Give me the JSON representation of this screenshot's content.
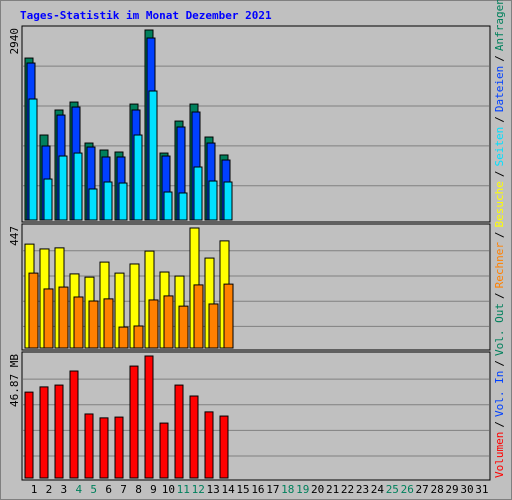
{
  "title": "Tages-Statistik im Monat Dezember 2021",
  "legend_separator": "/",
  "chart_data": [
    {
      "type": "bar",
      "ylim": [
        0,
        2940
      ],
      "yticks": [
        2940
      ],
      "series": [
        {
          "name": "Anfragen",
          "color": "#00805c",
          "values": [
            2506,
            1315,
            1702,
            1825,
            1191,
            1083,
            1052,
            1794,
            2940,
            1036,
            1531,
            1794,
            1284,
            1006,
            null,
            null,
            null,
            null,
            null,
            null,
            null,
            null,
            null,
            null,
            null,
            null,
            null,
            null,
            null,
            null,
            null
          ]
        },
        {
          "name": "Dateien",
          "color": "#0040ff",
          "values": [
            2429,
            1145,
            1624,
            1748,
            1129,
            975,
            975,
            1702,
            2816,
            990,
            1439,
            1671,
            1191,
            928,
            null,
            null,
            null,
            null,
            null,
            null,
            null,
            null,
            null,
            null,
            null,
            null,
            null,
            null,
            null,
            null,
            null
          ]
        },
        {
          "name": "Seiten",
          "color": "#00e0ff",
          "values": [
            1872,
            634,
            990,
            1036,
            480,
            588,
            572,
            1315,
            1996,
            433,
            418,
            820,
            603,
            588,
            null,
            null,
            null,
            null,
            null,
            null,
            null,
            null,
            null,
            null,
            null,
            null,
            null,
            null,
            null,
            null,
            null
          ]
        }
      ]
    },
    {
      "type": "bar",
      "ylim": [
        0,
        447
      ],
      "yticks": [
        447
      ],
      "series": [
        {
          "name": "Besuche",
          "color": "#ffff00",
          "values": [
            387,
            369,
            373,
            276,
            264,
            320,
            279,
            313,
            361,
            283,
            268,
            447,
            335,
            399,
            null,
            null,
            null,
            null,
            null,
            null,
            null,
            null,
            null,
            null,
            null,
            null,
            null,
            null,
            null,
            null,
            null
          ]
        },
        {
          "name": "Rechner",
          "color": "#ff8000",
          "values": [
            279,
            220,
            227,
            190,
            175,
            183,
            78,
            82,
            179,
            194,
            156,
            235,
            164,
            238,
            null,
            null,
            null,
            null,
            null,
            null,
            null,
            null,
            null,
            null,
            null,
            null,
            null,
            null,
            null,
            null,
            null
          ]
        }
      ]
    },
    {
      "type": "bar",
      "ylim": [
        0,
        46.87
      ],
      "yticks": [
        {
          "value": 46.87,
          "label": "46.87 MB"
        }
      ],
      "categories": [
        "1",
        "2",
        "3",
        "4",
        "5",
        "6",
        "7",
        "8",
        "9",
        "10",
        "11",
        "12",
        "13",
        "14",
        "15",
        "16",
        "17",
        "18",
        "19",
        "20",
        "21",
        "22",
        "23",
        "24",
        "25",
        "26",
        "27",
        "28",
        "29",
        "30",
        "31"
      ],
      "label_colors": [
        "#000000",
        "#000000",
        "#000000",
        "#00805c",
        "#00805c",
        "#000000",
        "#000000",
        "#000000",
        "#000000",
        "#000000",
        "#00805c",
        "#00805c",
        "#000000",
        "#000000",
        "#000000",
        "#000000",
        "#000000",
        "#00805c",
        "#00805c",
        "#000000",
        "#000000",
        "#000000",
        "#000000",
        "#000000",
        "#00805c",
        "#00805c",
        "#000000",
        "#000000",
        "#000000",
        "#000000",
        "#000000"
      ],
      "series": [
        {
          "name": "Vol. Out",
          "color": "#00805c",
          "values": [
            null,
            null,
            null,
            null,
            null,
            null,
            null,
            null,
            null,
            null,
            null,
            null,
            null,
            null,
            null,
            null,
            null,
            null,
            null,
            null,
            null,
            null,
            null,
            null,
            null,
            null,
            null,
            null,
            null,
            null,
            null
          ]
        },
        {
          "name": "Vol. In",
          "color": "#0040ff",
          "values": [
            null,
            null,
            null,
            null,
            null,
            null,
            null,
            null,
            null,
            null,
            null,
            null,
            null,
            null,
            null,
            null,
            null,
            null,
            null,
            null,
            null,
            null,
            null,
            null,
            null,
            null,
            null,
            null,
            null,
            null,
            null
          ]
        },
        {
          "name": "Volumen",
          "color": "#ff0000",
          "values": [
            33.0,
            35.0,
            35.7,
            41.1,
            24.6,
            23.1,
            23.4,
            43.0,
            46.87,
            21.1,
            35.7,
            31.5,
            25.4,
            23.8,
            null,
            null,
            null,
            null,
            null,
            null,
            null,
            null,
            null,
            null,
            null,
            null,
            null,
            null,
            null,
            null,
            null
          ]
        }
      ]
    }
  ]
}
